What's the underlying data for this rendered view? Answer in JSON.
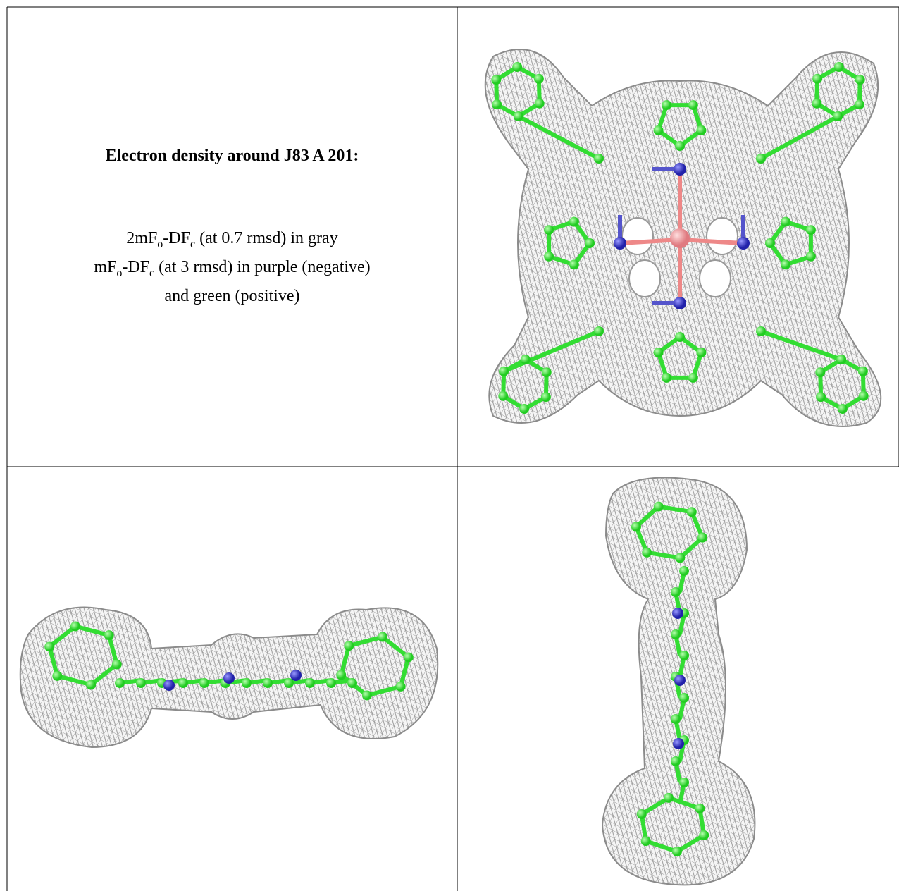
{
  "title": "Electron density around J83 A 201:",
  "legend": {
    "lines": [
      [
        {
          "text": "2mF"
        },
        {
          "sub": "o"
        },
        {
          "text": "-DF"
        },
        {
          "sub": "c"
        },
        {
          "text": " (at 0.7 rmsd) in gray"
        }
      ],
      [
        {
          "text": "mF"
        },
        {
          "sub": "o"
        },
        {
          "text": "-DF"
        },
        {
          "sub": "c"
        },
        {
          "text": " (at 3 rmsd) in purple (negative)"
        }
      ],
      [
        {
          "text": "and green (positive)"
        }
      ]
    ]
  }
}
